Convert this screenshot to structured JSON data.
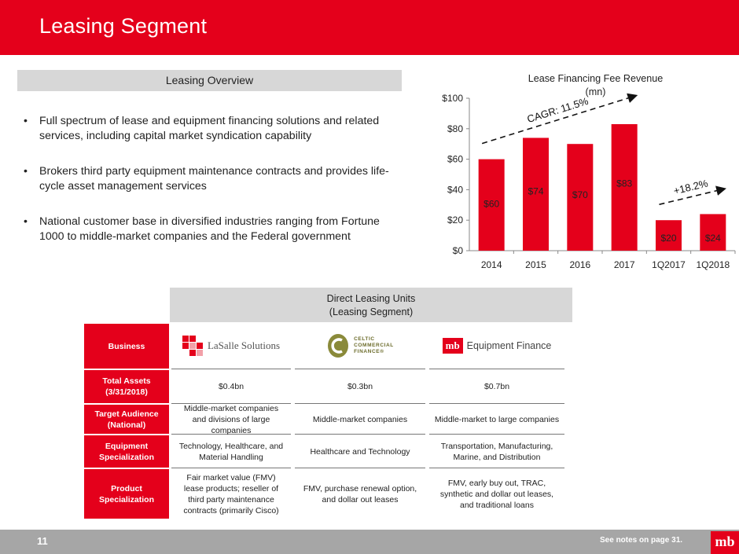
{
  "header": {
    "title": "Leasing Segment"
  },
  "overview": {
    "heading": "Leasing Overview",
    "bullets": [
      "Full spectrum of lease and equipment financing solutions and related services, including capital market syndication capability",
      "Brokers third party equipment maintenance contracts and provides life-cycle asset management services",
      "National customer base in diversified industries ranging from Fortune 1000 to middle-market companies and the Federal government"
    ]
  },
  "chart_data": {
    "type": "bar",
    "title": "Lease Financing Fee Revenue",
    "subtitle": "(mn)",
    "categories": [
      "2014",
      "2015",
      "2016",
      "2017",
      "1Q2017",
      "1Q2018"
    ],
    "values": [
      60,
      74,
      70,
      83,
      20,
      24
    ],
    "value_labels": [
      "$60",
      "$74",
      "$70",
      "$83",
      "$20",
      "$24"
    ],
    "ylim": [
      0,
      100
    ],
    "yticks": [
      0,
      20,
      40,
      60,
      80,
      100
    ],
    "ytick_labels": [
      "$0",
      "$20",
      "$40",
      "$60",
      "$80",
      "$100"
    ],
    "grid": false,
    "bar_color": "#e4001b",
    "annotations": [
      {
        "text": "CAGR: 11.5%",
        "from": "2014",
        "to": "2017"
      },
      {
        "text": "+18.2%",
        "from": "1Q2017",
        "to": "1Q2018"
      }
    ]
  },
  "units": {
    "heading_line1": "Direct Leasing Units",
    "heading_line2": "(Leasing Segment)",
    "row_labels": {
      "business": "Business",
      "assets": "Total Assets (3/31/2018)",
      "audience": "Target Audience (National)",
      "equipment": "Equipment Specialization",
      "product": "Product Specialization"
    },
    "logos": {
      "lasalle": "LaSalle Solutions",
      "celtic_line1": "CELTIC",
      "celtic_line2": "COMMERCIAL",
      "celtic_line3": "FINANCE®",
      "mb_mark": "mb",
      "mb_text": "Equipment Finance"
    },
    "columns": [
      {
        "assets": "$0.4bn",
        "audience": "Middle-market companies and divisions of large companies",
        "equipment": "Technology, Healthcare, and Material Handling",
        "product": "Fair market value (FMV) lease products; reseller of third party maintenance contracts (primarily Cisco)"
      },
      {
        "assets": "$0.3bn",
        "audience": "Middle-market companies",
        "equipment": "Healthcare and Technology",
        "product": "FMV, purchase renewal option, and dollar out leases"
      },
      {
        "assets": "$0.7bn",
        "audience": "Middle-market to large companies",
        "equipment": "Transportation, Manufacturing, Marine, and Distribution",
        "product": "FMV, early buy out, TRAC, synthetic and dollar out leases, and traditional loans"
      }
    ]
  },
  "footer": {
    "page_number": "11",
    "notes": "See notes on page 31.",
    "brand": "mb"
  },
  "colors": {
    "brand_red": "#e4001b",
    "gray_band": "#d7d7d7",
    "footer_gray": "#a6a6a6"
  }
}
